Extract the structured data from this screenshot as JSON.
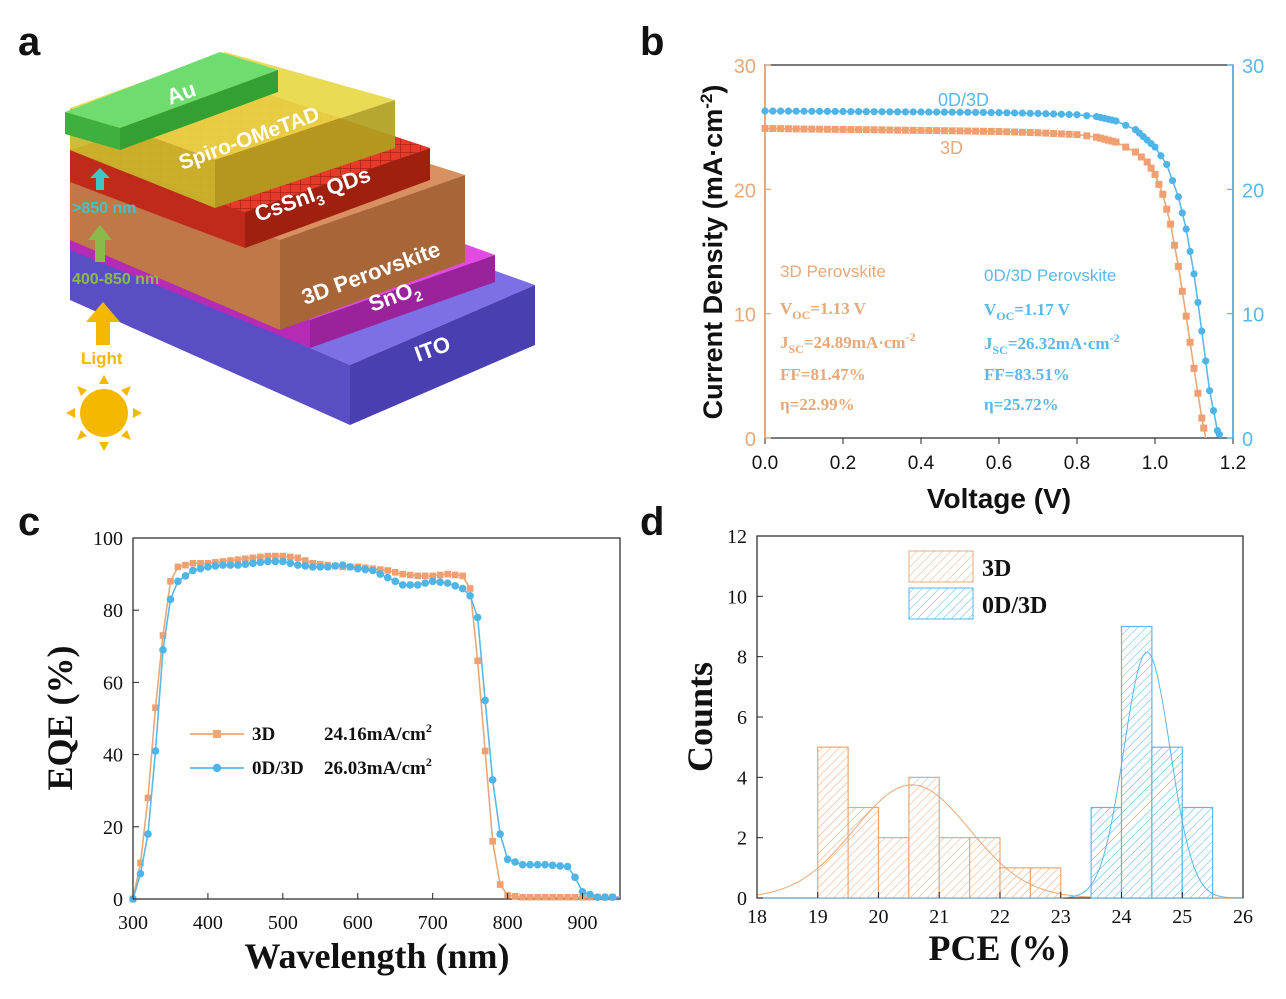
{
  "panels": {
    "a": "a",
    "b": "b",
    "c": "c",
    "d": "d"
  },
  "colors": {
    "orange": "#E8A878",
    "blue": "#5BB8E8",
    "orange_marker": "#F0A070",
    "blue_marker": "#4FB4E8",
    "light_arrow": "#F5B800",
    "au": "#5CD65C",
    "spiro": "#E0D03A",
    "qds": "#E83A2A",
    "perovskite": "#C87A4A",
    "sno2": "#D63AD6",
    "ito": "#6A5AD6"
  },
  "schematic": {
    "layers": [
      "Au",
      "Spiro-OMeTAD",
      "CsSnI",
      "3",
      " QDs",
      "3D Perovskite",
      "SnO",
      "2",
      "ITO"
    ],
    "label_850": ">850 nm",
    "label_400": "400-850 nm",
    "light": "Light"
  },
  "chart_data": [
    {
      "panel": "b",
      "type": "line",
      "xlabel": "Voltage (V)",
      "ylabel": "Current Density (mA·cm",
      "ylabel_sup": "-2",
      "ylabel_end": ")",
      "xlim": [
        0.0,
        1.2
      ],
      "ylim": [
        0,
        30
      ],
      "xticks": [
        "0.0",
        "0.2",
        "0.4",
        "0.6",
        "0.8",
        "1.0",
        "1.2"
      ],
      "yticks_left": [
        "0",
        "10",
        "20",
        "30"
      ],
      "yticks_right": [
        "0",
        "10",
        "20",
        "30"
      ],
      "series": [
        {
          "name": "3D",
          "color": "#E8A878",
          "x": [
            0.0,
            0.1,
            0.2,
            0.3,
            0.4,
            0.5,
            0.6,
            0.7,
            0.8,
            0.85,
            0.9,
            0.95,
            0.98,
            1.0,
            1.02,
            1.04,
            1.06,
            1.08,
            1.1,
            1.12,
            1.13
          ],
          "y": [
            24.9,
            24.85,
            24.82,
            24.78,
            24.74,
            24.7,
            24.65,
            24.55,
            24.4,
            24.2,
            23.8,
            23.0,
            22.2,
            21.2,
            19.6,
            17.2,
            13.8,
            9.8,
            5.6,
            1.6,
            0
          ]
        },
        {
          "name": "0D/3D",
          "color": "#5BB8E8",
          "x": [
            0.0,
            0.1,
            0.2,
            0.3,
            0.4,
            0.5,
            0.6,
            0.7,
            0.8,
            0.85,
            0.9,
            0.95,
            1.0,
            1.03,
            1.06,
            1.08,
            1.1,
            1.12,
            1.14,
            1.16,
            1.17
          ],
          "y": [
            26.3,
            26.28,
            26.26,
            26.24,
            26.22,
            26.2,
            26.17,
            26.1,
            26.0,
            25.85,
            25.5,
            24.8,
            23.4,
            22.0,
            19.4,
            16.8,
            13.2,
            8.6,
            3.8,
            0.6,
            0
          ]
        }
      ],
      "curve_labels": {
        "top": "0D/3D",
        "bottom": "3D"
      },
      "annotations": {
        "left": {
          "title": "3D Perovskite",
          "voc_label": "V",
          "voc_sub": "OC",
          "voc_val": "=1.13 V",
          "jsc_label": "J",
          "jsc_sub": "SC",
          "jsc_val": "=24.89mA·cm",
          "jsc_sup": "-2",
          "ff": "FF=81.47%",
          "eta": "η=22.99%"
        },
        "right": {
          "title": "0D/3D Perovskite",
          "voc_label": "V",
          "voc_sub": "OC",
          "voc_val": "=1.17 V",
          "jsc_label": "J",
          "jsc_sub": "SC",
          "jsc_val": "=26.32mA·cm",
          "jsc_sup": "-2",
          "ff": "FF=83.51%",
          "eta": "η=25.72%"
        }
      }
    },
    {
      "panel": "c",
      "type": "line",
      "xlabel": "Wavelength (nm)",
      "ylabel": "EQE (%)",
      "xlim": [
        300,
        950
      ],
      "ylim": [
        0,
        100
      ],
      "xticks": [
        "300",
        "400",
        "500",
        "600",
        "700",
        "800",
        "900"
      ],
      "yticks": [
        "0",
        "20",
        "40",
        "60",
        "80",
        "100"
      ],
      "series": [
        {
          "name": "3D",
          "legend_value": "24.16mA/cm",
          "color": "#E8A878",
          "x": [
            300,
            310,
            320,
            330,
            340,
            350,
            360,
            380,
            400,
            420,
            440,
            460,
            480,
            500,
            520,
            540,
            560,
            580,
            600,
            620,
            640,
            660,
            680,
            700,
            720,
            740,
            750,
            760,
            770,
            780,
            790,
            800,
            820,
            850,
            900,
            950
          ],
          "y": [
            0,
            10,
            28,
            53,
            73,
            88,
            92,
            93,
            93,
            93.5,
            94,
            94.5,
            95,
            95,
            94.5,
            93,
            92.5,
            92,
            92,
            91.5,
            91,
            90,
            89.5,
            89.5,
            90,
            89.5,
            86,
            66,
            41,
            16,
            4,
            1,
            0.5,
            0.5,
            0.5,
            0.5
          ]
        },
        {
          "name": "0D/3D",
          "legend_value": "26.03mA/cm",
          "color": "#5BB8E8",
          "x": [
            300,
            310,
            320,
            330,
            340,
            350,
            360,
            380,
            400,
            420,
            440,
            460,
            480,
            500,
            520,
            540,
            560,
            580,
            600,
            620,
            640,
            660,
            680,
            700,
            720,
            740,
            750,
            760,
            770,
            780,
            790,
            800,
            820,
            850,
            880,
            890,
            900,
            920,
            950
          ],
          "y": [
            0,
            7,
            18,
            41,
            69,
            83,
            88,
            91,
            92,
            92.5,
            92.5,
            93,
            93.5,
            93.5,
            92.5,
            92,
            92,
            92.5,
            91.5,
            91,
            89,
            87,
            87,
            88,
            87.5,
            86,
            84,
            78,
            55,
            33,
            18,
            11,
            9.5,
            9.5,
            9,
            6,
            2,
            0.5,
            0.5
          ]
        }
      ],
      "legend_sup": "2"
    },
    {
      "panel": "d",
      "type": "bar",
      "xlabel": "PCE (%)",
      "ylabel": "Counts",
      "xlim": [
        18,
        26
      ],
      "ylim": [
        0,
        12
      ],
      "xticks": [
        "18",
        "19",
        "20",
        "21",
        "22",
        "23",
        "24",
        "25",
        "26"
      ],
      "yticks": [
        "0",
        "2",
        "4",
        "6",
        "8",
        "10",
        "12"
      ],
      "bin_width": 0.5,
      "series": [
        {
          "name": "3D",
          "color": "#E8A878",
          "bin_starts": [
            19.0,
            19.5,
            20.0,
            20.5,
            21.0,
            21.5,
            22.0,
            22.5
          ],
          "counts": [
            5,
            3,
            2,
            4,
            2,
            2,
            1,
            1
          ],
          "fit_mean": 20.55,
          "fit_sd": 0.95,
          "fit_peak": 3.75
        },
        {
          "name": "0D/3D",
          "color": "#5BB8E8",
          "bin_starts": [
            23.5,
            24.0,
            24.5,
            25.0
          ],
          "counts": [
            3,
            9,
            5,
            3
          ],
          "fit_mean": 24.42,
          "fit_sd": 0.38,
          "fit_peak": 8.15
        }
      ]
    }
  ]
}
